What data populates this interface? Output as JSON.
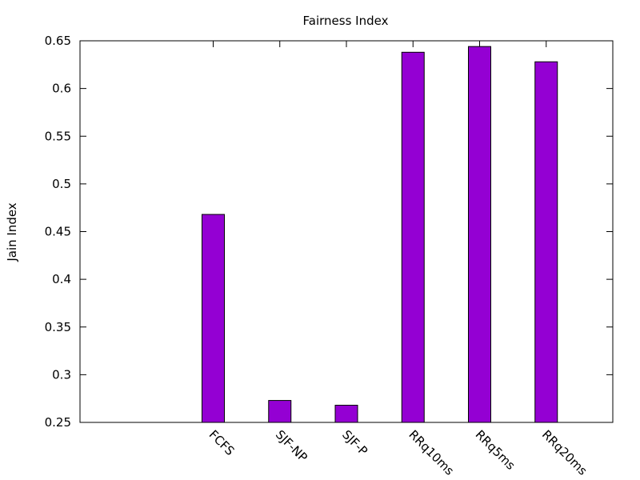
{
  "chart_data": {
    "type": "bar",
    "title": "Fairness Index",
    "xlabel": "",
    "ylabel": "Jain Index",
    "categories": [
      "FCFS",
      "SJF-NP",
      "SJF-P",
      "RRq10ms",
      "RRq5ms",
      "RRq20ms"
    ],
    "values": [
      0.468,
      0.273,
      0.268,
      0.638,
      0.644,
      0.628
    ],
    "ylim": [
      0.25,
      0.65
    ],
    "yticks": [
      "0.25",
      "0.3",
      "0.35",
      "0.4",
      "0.45",
      "0.5",
      "0.55",
      "0.6",
      "0.65"
    ],
    "bar_color": "#9400D3",
    "grid": false,
    "legend": "none"
  }
}
